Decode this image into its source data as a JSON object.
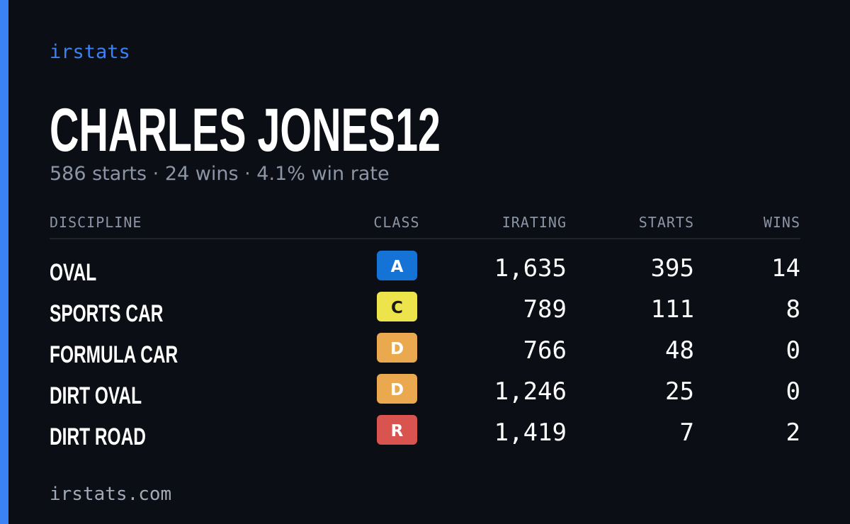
{
  "brand": "irstats",
  "title": "CHARLES JONES12",
  "subtitle": "586 starts · 24 wins · 4.1% win rate",
  "table": {
    "headers": [
      "DISCIPLINE",
      "CLASS",
      "IRATING",
      "STARTS",
      "WINS"
    ],
    "rows": [
      {
        "discipline": "OVAL",
        "class": "A",
        "class_color": "#1673d6",
        "class_text_color": "#ffffff",
        "irating": "1,635",
        "starts": 395,
        "wins": 14
      },
      {
        "discipline": "SPORTS CAR",
        "class": "C",
        "class_color": "#ede34b",
        "class_text_color": "#1a1a1a",
        "irating": "789",
        "starts": 111,
        "wins": 8
      },
      {
        "discipline": "FORMULA CAR",
        "class": "D",
        "class_color": "#eaa94f",
        "class_text_color": "#ffffff",
        "irating": "766",
        "starts": 48,
        "wins": 0
      },
      {
        "discipline": "DIRT OVAL",
        "class": "D",
        "class_color": "#eaa94f",
        "class_text_color": "#ffffff",
        "irating": "1,246",
        "starts": 25,
        "wins": 0
      },
      {
        "discipline": "DIRT ROAD",
        "class": "R",
        "class_color": "#d9534f",
        "class_text_color": "#ffffff",
        "irating": "1,419",
        "starts": 7,
        "wins": 2
      }
    ]
  },
  "footer": "irstats.com"
}
